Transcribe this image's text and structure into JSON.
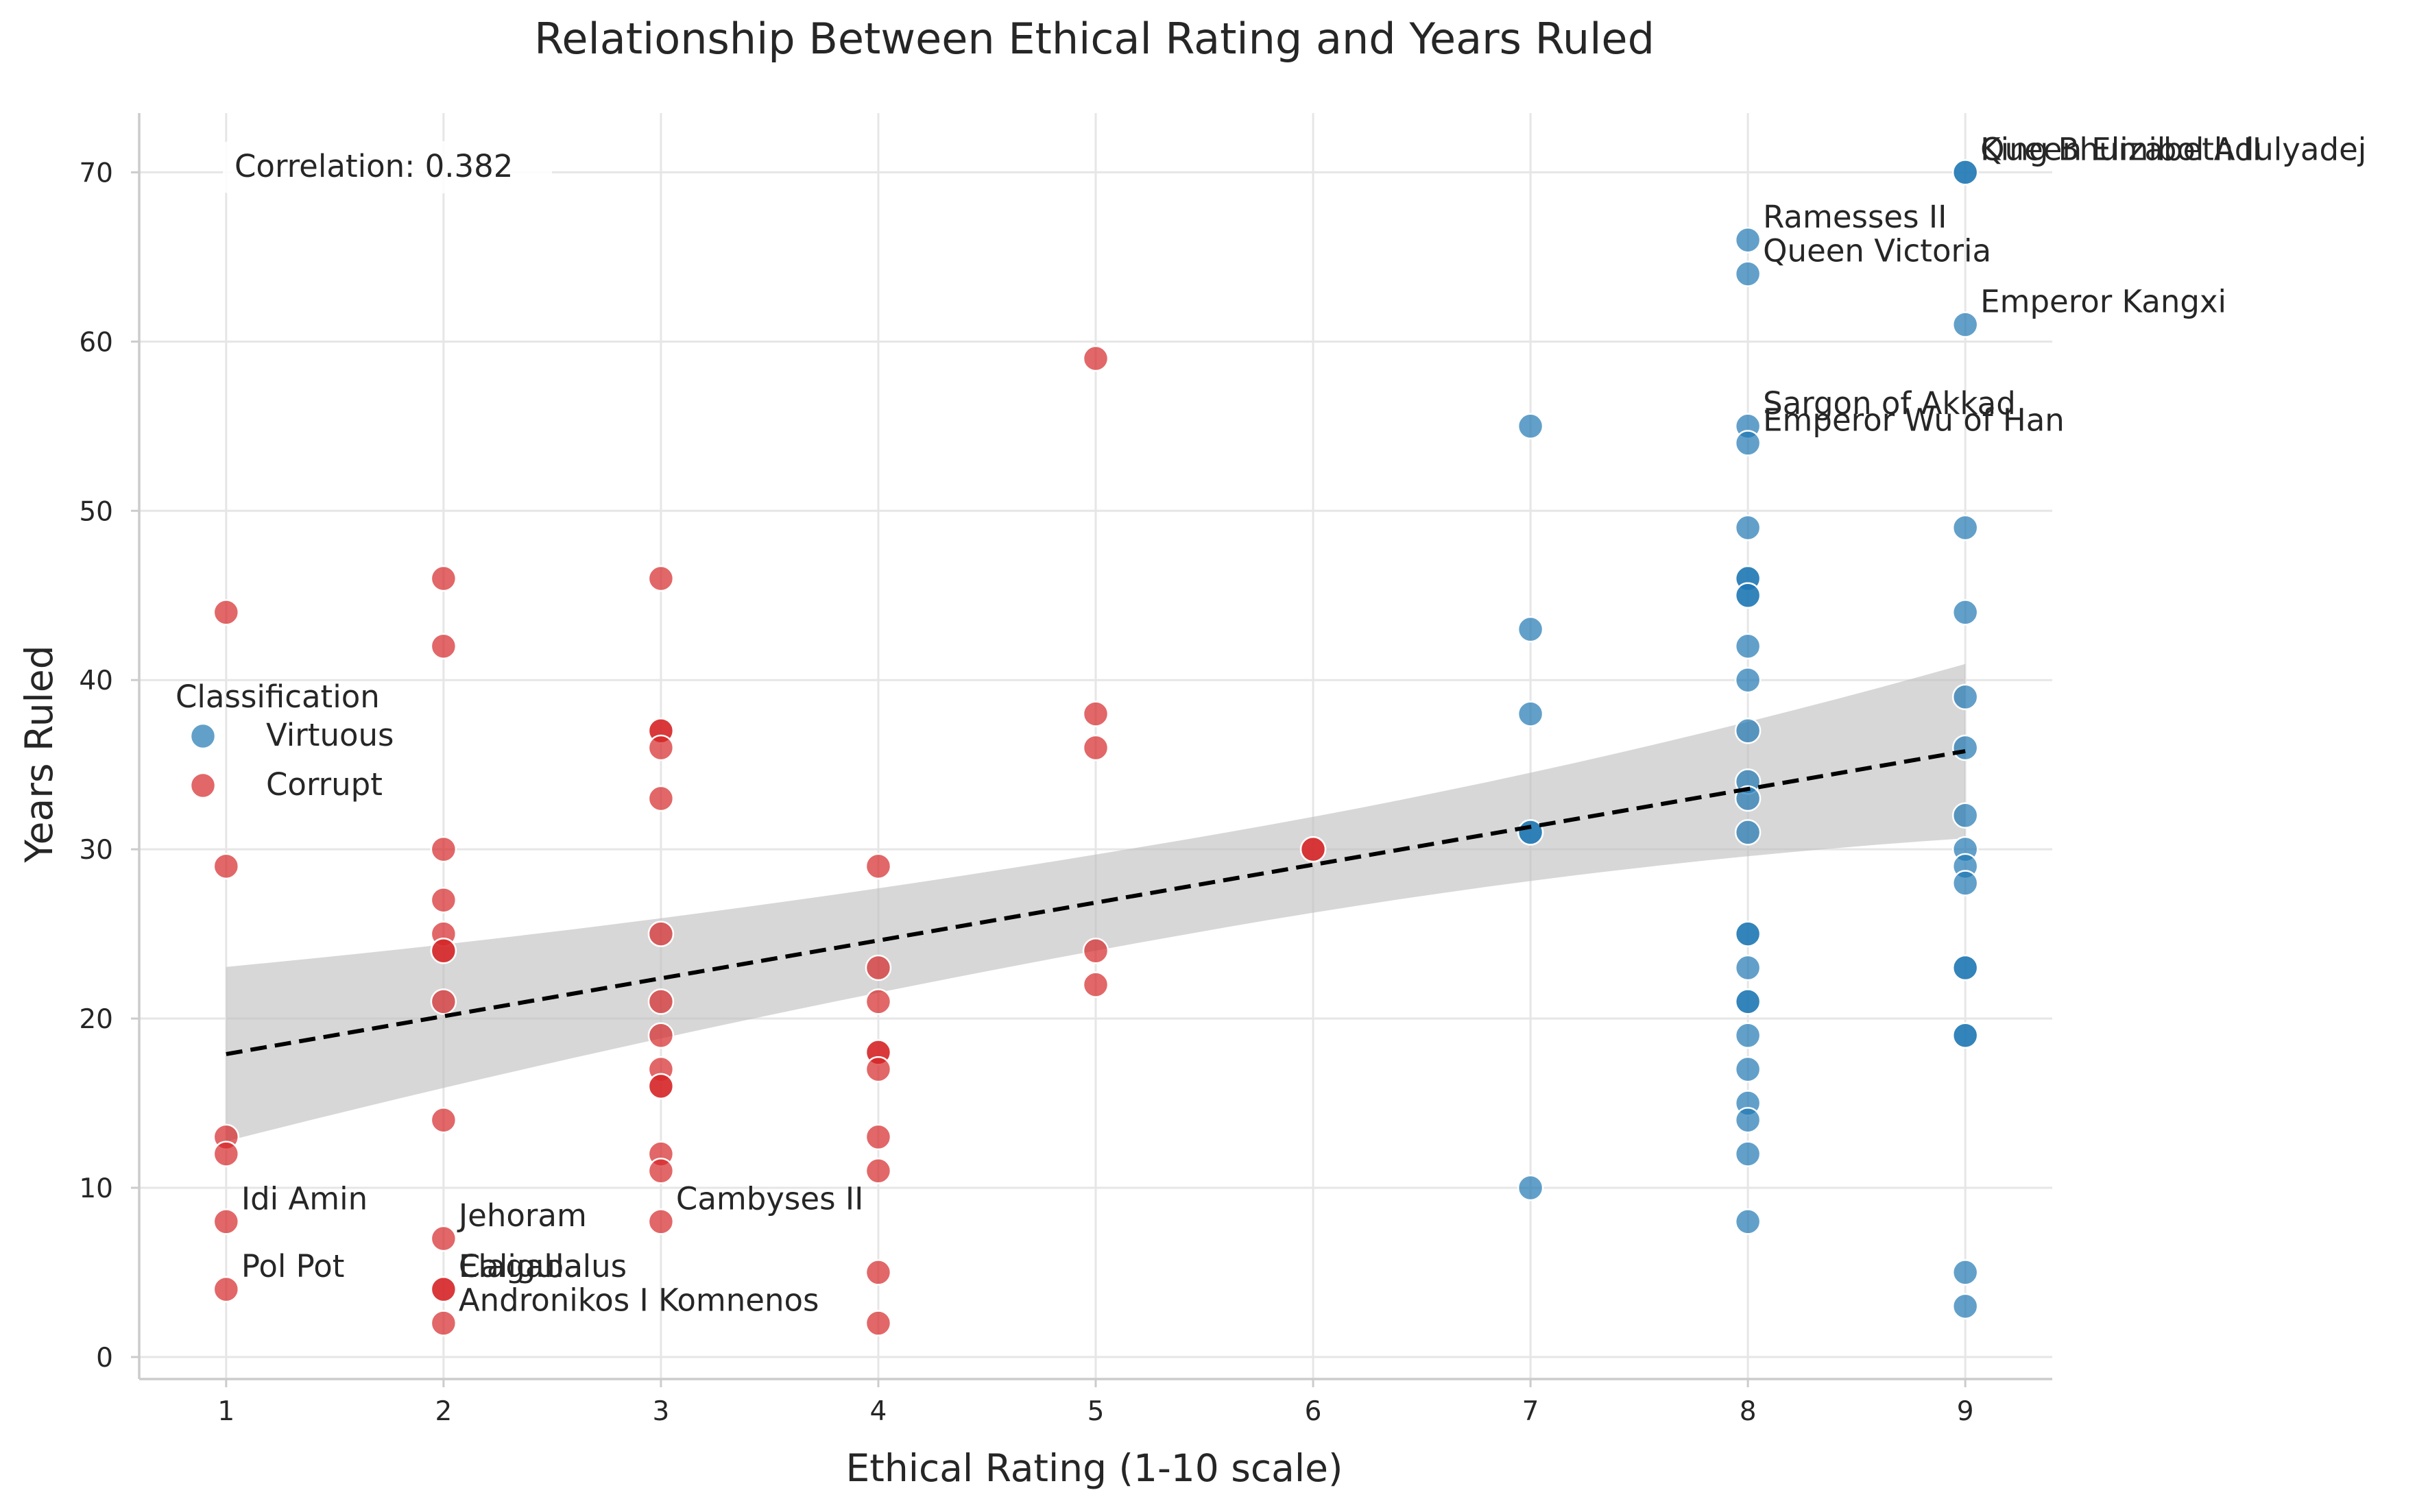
{
  "chart_data": {
    "type": "scatter",
    "title": "Relationship Between Ethical Rating and Years Ruled",
    "xlabel": "Ethical Rating (1-10 scale)",
    "ylabel": "Years Ruled",
    "xlim": [
      0.6,
      9.4
    ],
    "ylim": [
      -1.3,
      73.5
    ],
    "xticks": [
      1,
      2,
      3,
      4,
      5,
      6,
      7,
      8,
      9
    ],
    "yticks": [
      0,
      10,
      20,
      30,
      40,
      50,
      60,
      70
    ],
    "grid": true,
    "legend": {
      "title": "Classification",
      "placement": "left",
      "entries": [
        "Virtuous",
        "Corrupt"
      ]
    },
    "correlation_text": "Correlation: 0.382",
    "regression": {
      "x": [
        1,
        9
      ],
      "y": [
        17.9,
        35.8
      ],
      "ci_lower": [
        12.8,
        30.6
      ],
      "ci_upper": [
        23.1,
        40.9
      ],
      "style": "dashed",
      "color": "#000000",
      "band_color": "#bdbdbd"
    },
    "series": [
      {
        "name": "Virtuous",
        "color": "#1f77b4",
        "points": [
          [
            7,
            55
          ],
          [
            7,
            43
          ],
          [
            7,
            38
          ],
          [
            7,
            31
          ],
          [
            7,
            31
          ],
          [
            7,
            10
          ],
          [
            8,
            66
          ],
          [
            8,
            64
          ],
          [
            8,
            55
          ],
          [
            8,
            54
          ],
          [
            8,
            49
          ],
          [
            8,
            46
          ],
          [
            8,
            46
          ],
          [
            8,
            45
          ],
          [
            8,
            45
          ],
          [
            8,
            42
          ],
          [
            8,
            40
          ],
          [
            8,
            37
          ],
          [
            8,
            34
          ],
          [
            8,
            33
          ],
          [
            8,
            31
          ],
          [
            8,
            25
          ],
          [
            8,
            25
          ],
          [
            8,
            23
          ],
          [
            8,
            21
          ],
          [
            8,
            21
          ],
          [
            8,
            19
          ],
          [
            8,
            17
          ],
          [
            8,
            15
          ],
          [
            8,
            14
          ],
          [
            8,
            12
          ],
          [
            8,
            8
          ],
          [
            9,
            70
          ],
          [
            9,
            70
          ],
          [
            9,
            61
          ],
          [
            9,
            49
          ],
          [
            9,
            44
          ],
          [
            9,
            39
          ],
          [
            9,
            36
          ],
          [
            9,
            32
          ],
          [
            9,
            30
          ],
          [
            9,
            29
          ],
          [
            9,
            28
          ],
          [
            9,
            23
          ],
          [
            9,
            23
          ],
          [
            9,
            19
          ],
          [
            9,
            19
          ],
          [
            9,
            5
          ],
          [
            9,
            3
          ]
        ]
      },
      {
        "name": "Corrupt",
        "color": "#d62728",
        "points": [
          [
            1,
            44
          ],
          [
            1,
            29
          ],
          [
            1,
            13
          ],
          [
            1,
            12
          ],
          [
            1,
            8
          ],
          [
            1,
            4
          ],
          [
            2,
            46
          ],
          [
            2,
            42
          ],
          [
            2,
            30
          ],
          [
            2,
            27
          ],
          [
            2,
            25
          ],
          [
            2,
            24
          ],
          [
            2,
            24
          ],
          [
            2,
            21
          ],
          [
            2,
            14
          ],
          [
            2,
            7
          ],
          [
            2,
            4
          ],
          [
            2,
            4
          ],
          [
            2,
            2
          ],
          [
            3,
            46
          ],
          [
            3,
            37
          ],
          [
            3,
            37
          ],
          [
            3,
            36
          ],
          [
            3,
            33
          ],
          [
            3,
            25
          ],
          [
            3,
            21
          ],
          [
            3,
            19
          ],
          [
            3,
            17
          ],
          [
            3,
            16
          ],
          [
            3,
            16
          ],
          [
            3,
            12
          ],
          [
            3,
            11
          ],
          [
            3,
            8
          ],
          [
            4,
            29
          ],
          [
            4,
            23
          ],
          [
            4,
            21
          ],
          [
            4,
            18
          ],
          [
            4,
            18
          ],
          [
            4,
            17
          ],
          [
            4,
            13
          ],
          [
            4,
            11
          ],
          [
            4,
            5
          ],
          [
            4,
            2
          ],
          [
            5,
            59
          ],
          [
            5,
            38
          ],
          [
            5,
            36
          ],
          [
            5,
            24
          ],
          [
            5,
            22
          ],
          [
            6,
            30
          ],
          [
            6,
            30
          ]
        ]
      }
    ],
    "annotations": [
      {
        "text": "Queen Elizabeth II",
        "x": 9,
        "y": 70
      },
      {
        "text": "King Bhumibol Adulyadej",
        "x": 9,
        "y": 70
      },
      {
        "text": "Ramesses II",
        "x": 8,
        "y": 66
      },
      {
        "text": "Queen Victoria",
        "x": 8,
        "y": 64
      },
      {
        "text": "Emperor Kangxi",
        "x": 9,
        "y": 61
      },
      {
        "text": "Sargon of Akkad",
        "x": 8,
        "y": 55
      },
      {
        "text": "Emperor Wu of Han",
        "x": 8,
        "y": 54
      },
      {
        "text": "Idi Amin",
        "x": 1,
        "y": 8
      },
      {
        "text": "Pol Pot",
        "x": 1,
        "y": 4
      },
      {
        "text": "Jehoram",
        "x": 2,
        "y": 7
      },
      {
        "text": "Elagabalus",
        "x": 2,
        "y": 4
      },
      {
        "text": "Caligula",
        "x": 2,
        "y": 4
      },
      {
        "text": "Andronikos I Komnenos",
        "x": 2,
        "y": 2
      },
      {
        "text": "Cambyses II",
        "x": 3,
        "y": 8
      }
    ]
  }
}
